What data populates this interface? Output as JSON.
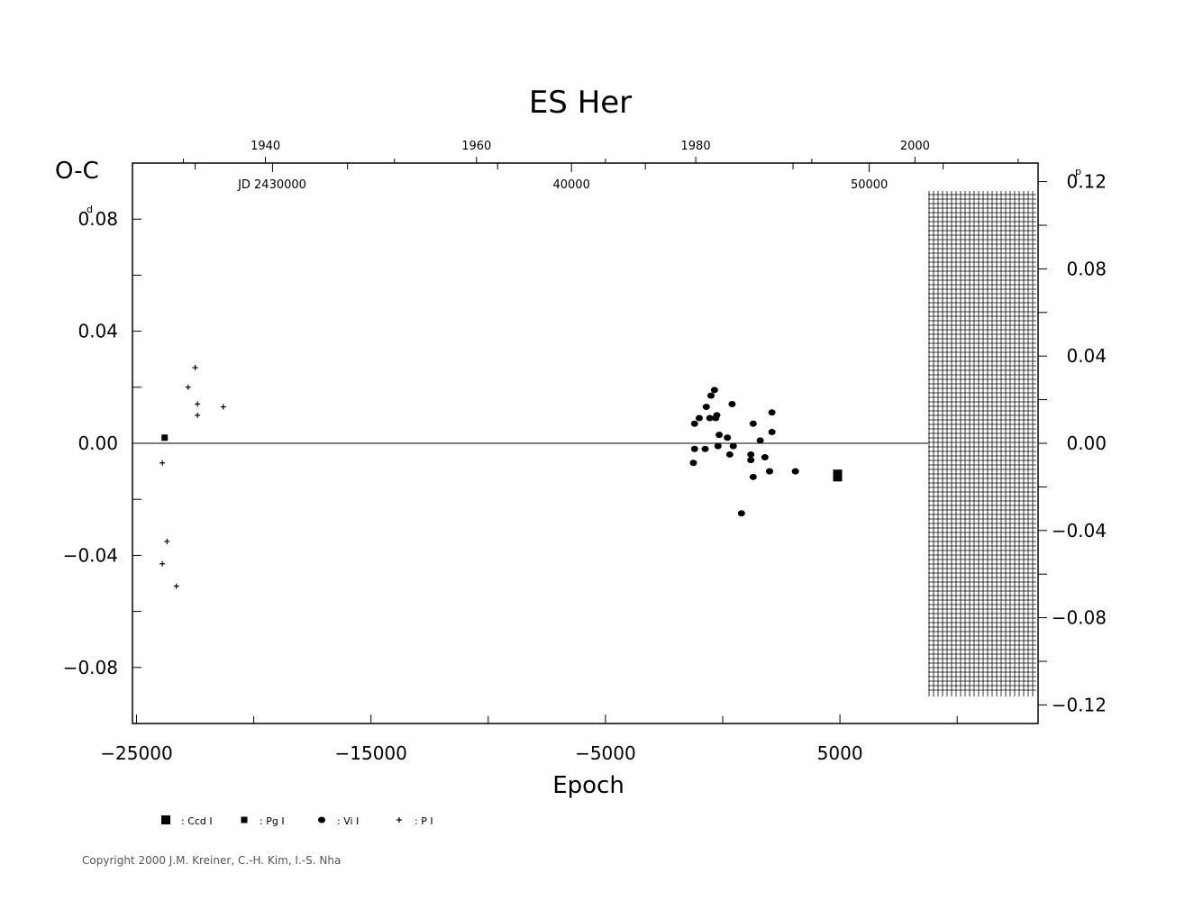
{
  "chart_data": {
    "type": "scatter",
    "title": "ES Her",
    "xlabel": "Epoch",
    "ylabel": "O-C",
    "ylabel_unit": "d",
    "right_unit": "p",
    "jd_label": "JD 2430000",
    "xlim": [
      -25300,
      13500
    ],
    "ylim": [
      -0.1,
      0.1
    ],
    "right_ylim": [
      -0.129,
      0.129
    ],
    "x_ticks": [
      -25000,
      -15000,
      -5000,
      5000
    ],
    "x_tick_labels": [
      "-25000",
      "-15000",
      "-5000",
      "5000"
    ],
    "y_ticks": [
      0.08,
      0.04,
      0.0,
      -0.04,
      -0.08
    ],
    "y_tick_labels": [
      "0.08",
      "0.04",
      "0.00",
      "-0.04",
      "-0.08"
    ],
    "right_ticks": [
      0.12,
      0.08,
      0.04,
      0.0,
      -0.04,
      -0.08,
      -0.12
    ],
    "right_tick_labels": [
      "0.12",
      "0.08",
      "0.04",
      "0.00",
      "-0.04",
      "-0.08",
      "-0.12"
    ],
    "year_ticks": [
      {
        "epoch": -19500,
        "label": "1940"
      },
      {
        "epoch": -10500,
        "label": "1960"
      },
      {
        "epoch": -1150,
        "label": "1980"
      },
      {
        "epoch": 8200,
        "label": "2000"
      }
    ],
    "jd_ticks": [
      {
        "epoch": -19200,
        "label": ""
      },
      {
        "epoch": -6450,
        "label": "40000"
      },
      {
        "epoch": 6250,
        "label": "50000"
      }
    ],
    "legend": [
      {
        "marker": "ccd",
        "label": ": Ccd I"
      },
      {
        "marker": "pg",
        "label": ": Pg I"
      },
      {
        "marker": "vis",
        "label": ": Vi I"
      },
      {
        "marker": "pe",
        "label": ": P I"
      }
    ],
    "series": [
      {
        "marker": "ccd",
        "points": [
          [
            4900,
            -0.011
          ],
          [
            4900,
            -0.012
          ]
        ]
      },
      {
        "marker": "pg",
        "points": [
          [
            -23800,
            0.002
          ]
        ]
      },
      {
        "marker": "vis",
        "points": [
          [
            -1200,
            0.007
          ],
          [
            -1000,
            0.009
          ],
          [
            -700,
            0.013
          ],
          [
            -500,
            0.017
          ],
          [
            -350,
            0.019
          ],
          [
            -550,
            0.009
          ],
          [
            -300,
            0.009
          ],
          [
            -250,
            0.01
          ],
          [
            -1200,
            -0.002
          ],
          [
            -1250,
            -0.007
          ],
          [
            -750,
            -0.002
          ],
          [
            -150,
            0.003
          ],
          [
            -200,
            -0.001
          ],
          [
            200,
            0.002
          ],
          [
            400,
            0.014
          ],
          [
            300,
            -0.004
          ],
          [
            450,
            -0.001
          ],
          [
            800,
            -0.025
          ],
          [
            1200,
            -0.004
          ],
          [
            1200,
            -0.006
          ],
          [
            1300,
            0.007
          ],
          [
            1300,
            -0.012
          ],
          [
            1600,
            0.001
          ],
          [
            1800,
            -0.005
          ],
          [
            2000,
            -0.01
          ],
          [
            2100,
            0.004
          ],
          [
            2100,
            0.011
          ],
          [
            3100,
            -0.01
          ]
        ]
      },
      {
        "marker": "pe",
        "points": [
          [
            -22500,
            0.027
          ],
          [
            -22800,
            0.02
          ],
          [
            -22400,
            0.014
          ],
          [
            -22400,
            0.01
          ],
          [
            -21300,
            0.013
          ],
          [
            -23900,
            -0.007
          ],
          [
            -23700,
            -0.035
          ],
          [
            -23900,
            -0.043
          ],
          [
            -23300,
            -0.051
          ]
        ]
      }
    ]
  },
  "copyright": "Copyright 2000 J.M. Kreiner, C.-H. Kim, I.-S. Nha"
}
